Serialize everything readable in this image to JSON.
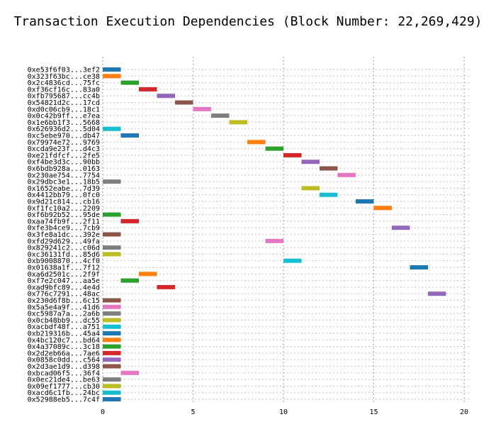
{
  "chart_data": {
    "type": "bar",
    "orientation": "horizontal-gantt",
    "title": "Transaction Execution Dependencies (Block Number: 22,269,429)",
    "xlim": [
      0,
      20
    ],
    "x_ticks": [
      "0",
      "5",
      "10",
      "15",
      "20"
    ],
    "grid": true,
    "tasks": [
      {
        "label": "0xe53f6f03...3ef2",
        "start": 0,
        "end": 1,
        "color": "#1f77b4"
      },
      {
        "label": "0x323f63bc...ce38",
        "start": 0,
        "end": 1,
        "color": "#ff7f0e"
      },
      {
        "label": "0x2c4836cd...75fc",
        "start": 1,
        "end": 2,
        "color": "#2ca02c"
      },
      {
        "label": "0xf36cf16c...83a0",
        "start": 2,
        "end": 3,
        "color": "#d62728"
      },
      {
        "label": "0xfb795687...cc4b",
        "start": 3,
        "end": 4,
        "color": "#9467bd"
      },
      {
        "label": "0x54821d2c...17cd",
        "start": 4,
        "end": 5,
        "color": "#8c564b"
      },
      {
        "label": "0xd0c06cb9...18c1",
        "start": 5,
        "end": 6,
        "color": "#e377c2"
      },
      {
        "label": "0x0c42b9ff...e7ea",
        "start": 6,
        "end": 7,
        "color": "#7f7f7f"
      },
      {
        "label": "0x1e6bb1f3...5668",
        "start": 7,
        "end": 8,
        "color": "#bcbd22"
      },
      {
        "label": "0x626936d2...5d04",
        "start": 0,
        "end": 1,
        "color": "#17becf"
      },
      {
        "label": "0xc5ebe970...db47",
        "start": 1,
        "end": 2,
        "color": "#1f77b4"
      },
      {
        "label": "0x79974e72...9769",
        "start": 8,
        "end": 9,
        "color": "#ff7f0e"
      },
      {
        "label": "0xcda9e23f...d4c3",
        "start": 9,
        "end": 10,
        "color": "#2ca02c"
      },
      {
        "label": "0xe21fdfcf...2fe5",
        "start": 10,
        "end": 11,
        "color": "#d62728"
      },
      {
        "label": "0xf4be3d3c...90bb",
        "start": 11,
        "end": 12,
        "color": "#9467bd"
      },
      {
        "label": "0x6bdb928a...0163",
        "start": 12,
        "end": 13,
        "color": "#8c564b"
      },
      {
        "label": "0x230ae754...7754",
        "start": 13,
        "end": 14,
        "color": "#e377c2"
      },
      {
        "label": "0x29dbc3e1...18b5",
        "start": 0,
        "end": 1,
        "color": "#7f7f7f"
      },
      {
        "label": "0x1652eabe...7d39",
        "start": 11,
        "end": 12,
        "color": "#bcbd22"
      },
      {
        "label": "0x4412bb79...0fc0",
        "start": 12,
        "end": 13,
        "color": "#17becf"
      },
      {
        "label": "0x9d21c814...cb16",
        "start": 14,
        "end": 15,
        "color": "#1f77b4"
      },
      {
        "label": "0xf1fc10a2...2209",
        "start": 15,
        "end": 16,
        "color": "#ff7f0e"
      },
      {
        "label": "0xf6b92b52...95de",
        "start": 0,
        "end": 1,
        "color": "#2ca02c"
      },
      {
        "label": "0xaa74fb9f...2f11",
        "start": 1,
        "end": 2,
        "color": "#d62728"
      },
      {
        "label": "0xfe3b4ce9...7cb9",
        "start": 16,
        "end": 17,
        "color": "#9467bd"
      },
      {
        "label": "0x3fe8a1dc...392e",
        "start": 0,
        "end": 1,
        "color": "#8c564b"
      },
      {
        "label": "0xfd29d629...49fa",
        "start": 9,
        "end": 10,
        "color": "#e377c2"
      },
      {
        "label": "0x829241c2...c06d",
        "start": 0,
        "end": 1,
        "color": "#7f7f7f"
      },
      {
        "label": "0xc36131fd...85d6",
        "start": 0,
        "end": 1,
        "color": "#bcbd22"
      },
      {
        "label": "0xb9008870...4cf0",
        "start": 10,
        "end": 11,
        "color": "#17becf"
      },
      {
        "label": "0x01638a1f...7f12",
        "start": 17,
        "end": 18,
        "color": "#1f77b4"
      },
      {
        "label": "0xa6d2501c...2f9f",
        "start": 2,
        "end": 3,
        "color": "#ff7f0e"
      },
      {
        "label": "0xf7e2c047...aa5e",
        "start": 1,
        "end": 2,
        "color": "#2ca02c"
      },
      {
        "label": "0xad9bfc89...4e4d",
        "start": 3,
        "end": 4,
        "color": "#d62728"
      },
      {
        "label": "0x776c7291...48ac",
        "start": 18,
        "end": 19,
        "color": "#9467bd"
      },
      {
        "label": "0x230d6f8b...6c15",
        "start": 0,
        "end": 1,
        "color": "#8c564b"
      },
      {
        "label": "0x5a5e4a9f...41d6",
        "start": 0,
        "end": 1,
        "color": "#e377c2"
      },
      {
        "label": "0xc5987a7a...2a6b",
        "start": 0,
        "end": 1,
        "color": "#7f7f7f"
      },
      {
        "label": "0x0cb48bb9...dc55",
        "start": 0,
        "end": 1,
        "color": "#bcbd22"
      },
      {
        "label": "0xacbdf48f...a751",
        "start": 0,
        "end": 1,
        "color": "#17becf"
      },
      {
        "label": "0xb219316b...45a4",
        "start": 0,
        "end": 1,
        "color": "#1f77b4"
      },
      {
        "label": "0x4bc120c7...bd64",
        "start": 0,
        "end": 1,
        "color": "#ff7f0e"
      },
      {
        "label": "0x4a37089c...3c18",
        "start": 0,
        "end": 1,
        "color": "#2ca02c"
      },
      {
        "label": "0x2d2eb66a...7ae6",
        "start": 0,
        "end": 1,
        "color": "#d62728"
      },
      {
        "label": "0x0858c0dd...c564",
        "start": 0,
        "end": 1,
        "color": "#9467bd"
      },
      {
        "label": "0x2d3ae1d9...d398",
        "start": 0,
        "end": 1,
        "color": "#8c564b"
      },
      {
        "label": "0xbcad06f5...36f4",
        "start": 1,
        "end": 2,
        "color": "#e377c2"
      },
      {
        "label": "0x0ec21de4...be63",
        "start": 0,
        "end": 1,
        "color": "#7f7f7f"
      },
      {
        "label": "0x09ef1777...cb30",
        "start": 0,
        "end": 1,
        "color": "#bcbd22"
      },
      {
        "label": "0xacd6c1fb...24bc",
        "start": 0,
        "end": 1,
        "color": "#17becf"
      },
      {
        "label": "0x52988eb5...7c4f",
        "start": 0,
        "end": 1,
        "color": "#1f77b4"
      }
    ]
  }
}
